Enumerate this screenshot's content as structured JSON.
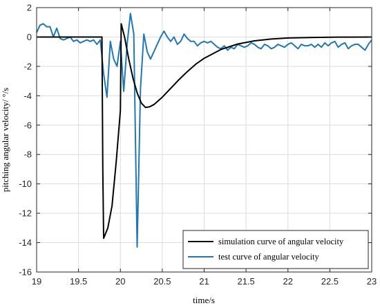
{
  "chart_data": {
    "type": "line",
    "xlabel": "time/s",
    "ylabel": "pitching angular velocity/ °/s",
    "xlim": [
      19,
      23
    ],
    "ylim": [
      -16,
      2
    ],
    "xticks": [
      19,
      19.5,
      20,
      20.5,
      21,
      21.5,
      22,
      22.5,
      23
    ],
    "xtick_labels": [
      "19",
      "19.5",
      "20",
      "20.5",
      "21",
      "21.5",
      "22",
      "22.5",
      "23"
    ],
    "yticks": [
      2,
      0,
      -2,
      -4,
      -6,
      -8,
      -10,
      -12,
      -14,
      -16
    ],
    "ytick_labels": [
      "2",
      "0",
      "-2",
      "-4",
      "-6",
      "-8",
      "-10",
      "-12",
      "-14",
      "-16"
    ],
    "grid": true,
    "legend_position": "bottom-right",
    "series": [
      {
        "name": "simulation curve of angular velocity",
        "color": "#000000",
        "x": [
          19,
          19.78,
          19.79,
          19.8,
          19.85,
          19.9,
          19.95,
          20.0,
          20.01,
          20.05,
          20.1,
          20.15,
          20.2,
          20.25,
          20.3,
          20.35,
          20.4,
          20.5,
          20.6,
          20.7,
          20.8,
          20.9,
          21.0,
          21.2,
          21.4,
          21.6,
          21.8,
          22.0,
          22.3,
          22.6,
          23.0
        ],
        "y": [
          0,
          0,
          -9.0,
          -13.7,
          -13.0,
          -11.5,
          -8.5,
          -5.0,
          0.9,
          0.0,
          -1.5,
          -2.8,
          -3.8,
          -4.5,
          -4.8,
          -4.75,
          -4.6,
          -4.1,
          -3.5,
          -2.9,
          -2.35,
          -1.85,
          -1.45,
          -0.85,
          -0.48,
          -0.26,
          -0.14,
          -0.07,
          -0.03,
          -0.01,
          0
        ]
      },
      {
        "name": "test curve of angular velocity",
        "color": "#1f77b4",
        "x": [
          19.0,
          19.04,
          19.08,
          19.12,
          19.16,
          19.2,
          19.24,
          19.28,
          19.32,
          19.36,
          19.4,
          19.44,
          19.48,
          19.52,
          19.56,
          19.6,
          19.64,
          19.68,
          19.72,
          19.76,
          19.8,
          19.84,
          19.88,
          19.92,
          19.96,
          20.0,
          20.04,
          20.08,
          20.12,
          20.16,
          20.2,
          20.24,
          20.28,
          20.32,
          20.36,
          20.4,
          20.44,
          20.48,
          20.52,
          20.56,
          20.6,
          20.64,
          20.68,
          20.72,
          20.76,
          20.8,
          20.84,
          20.88,
          20.92,
          20.96,
          21.0,
          21.04,
          21.08,
          21.12,
          21.16,
          21.2,
          21.24,
          21.28,
          21.32,
          21.36,
          21.4,
          21.44,
          21.48,
          21.52,
          21.56,
          21.6,
          21.64,
          21.68,
          21.72,
          21.76,
          21.8,
          21.84,
          21.88,
          21.92,
          21.96,
          22.0,
          22.04,
          22.08,
          22.12,
          22.16,
          22.2,
          22.24,
          22.28,
          22.32,
          22.36,
          22.4,
          22.44,
          22.48,
          22.52,
          22.56,
          22.6,
          22.64,
          22.68,
          22.72,
          22.76,
          22.8,
          22.84,
          22.88,
          22.92,
          22.96,
          23.0
        ],
        "y": [
          0.3,
          0.8,
          0.9,
          0.7,
          0.7,
          0.0,
          0.6,
          -0.1,
          -0.2,
          -0.1,
          0.0,
          -0.3,
          -0.2,
          -0.4,
          -0.3,
          -0.2,
          -0.3,
          -0.2,
          -0.5,
          -0.2,
          -2.5,
          -4.1,
          -0.3,
          -1.5,
          -2.0,
          -0.3,
          -3.7,
          -0.5,
          1.6,
          0.2,
          -14.3,
          -3.5,
          0.2,
          -1.0,
          -1.5,
          -1.0,
          -0.5,
          0.0,
          0.4,
          0.0,
          -0.3,
          0.0,
          -0.5,
          -0.3,
          0.2,
          -0.1,
          -0.3,
          -0.3,
          -0.6,
          -0.4,
          -0.3,
          -0.4,
          -0.3,
          -0.5,
          -0.7,
          -0.8,
          -0.6,
          -0.9,
          -0.7,
          -0.8,
          -0.5,
          -0.6,
          -0.7,
          -0.6,
          -0.4,
          -0.5,
          -0.7,
          -0.8,
          -0.5,
          -0.6,
          -0.8,
          -0.7,
          -0.5,
          -0.6,
          -0.7,
          -0.5,
          -0.4,
          -0.6,
          -0.8,
          -0.5,
          -0.6,
          -0.6,
          -0.5,
          -0.7,
          -0.5,
          -0.7,
          -0.4,
          -0.6,
          -0.4,
          -0.3,
          -0.7,
          -0.5,
          -0.4,
          -0.8,
          -0.6,
          -0.5,
          -0.5,
          -0.7,
          -0.9,
          -0.5,
          -0.2
        ]
      }
    ]
  }
}
